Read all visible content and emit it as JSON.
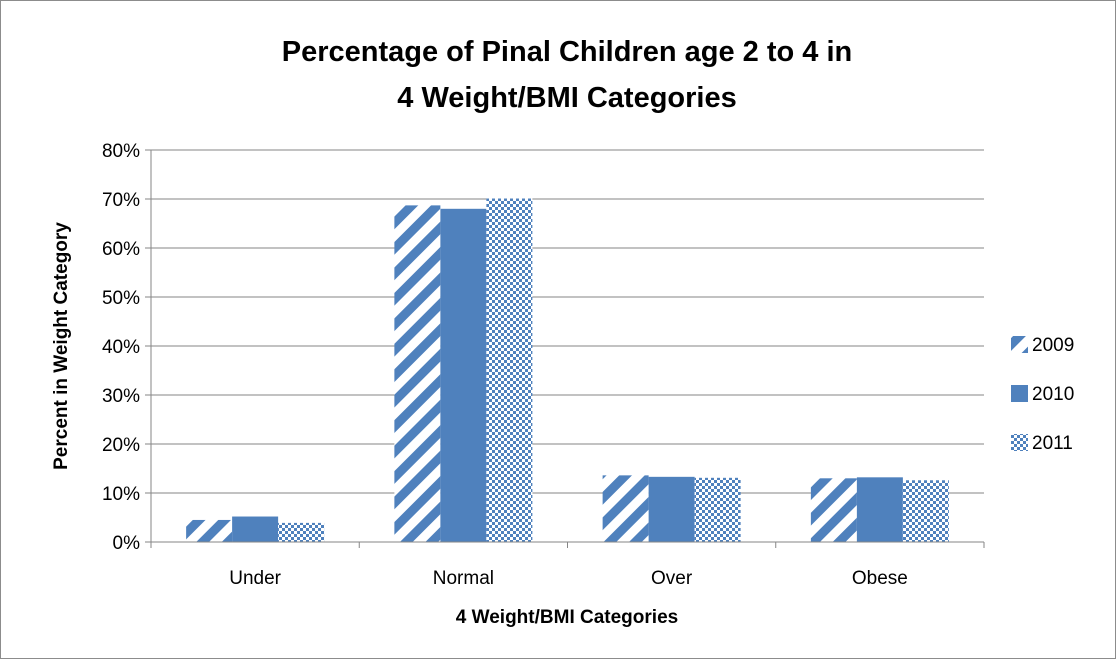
{
  "chart_data": {
    "type": "bar",
    "title": "Percentage of Pinal Children age 2 to 4 in",
    "title_line2": "4 Weight/BMI Categories",
    "xlabel": "4 Weight/BMI Categories",
    "ylabel": "Percent  in Weight Category",
    "ylim": [
      0,
      80
    ],
    "yticks": [
      "0%",
      "10%",
      "20%",
      "30%",
      "40%",
      "50%",
      "60%",
      "70%",
      "80%"
    ],
    "categories": [
      "Under",
      "Normal",
      "Over",
      "Obese"
    ],
    "series": [
      {
        "name": "2009",
        "pattern": "diagonal-stripes",
        "color": "#4f81bd",
        "values": [
          4.5,
          68.7,
          13.6,
          13.0
        ]
      },
      {
        "name": "2010",
        "pattern": "solid",
        "color": "#4f81bd",
        "values": [
          5.2,
          68.0,
          13.3,
          13.2
        ]
      },
      {
        "name": "2011",
        "pattern": "checker",
        "color": "#4f81bd",
        "values": [
          3.9,
          70.1,
          13.1,
          12.6
        ]
      }
    ],
    "grid": true,
    "legend_position": "right"
  }
}
